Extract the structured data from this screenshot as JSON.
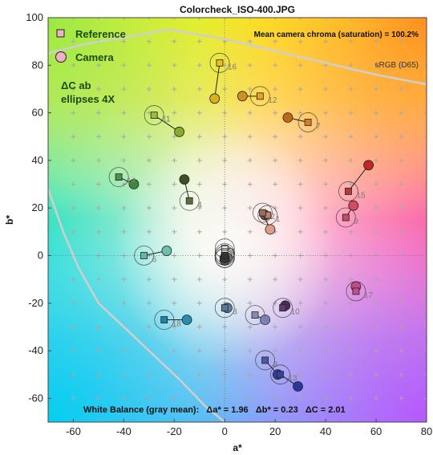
{
  "chart_data": {
    "type": "scatter",
    "title": "Colorcheck_ISO-400.JPG",
    "xlabel": "a*",
    "ylabel": "b*",
    "xlim": [
      -70,
      80
    ],
    "ylim": [
      -70,
      100
    ],
    "xticks": [
      "-60",
      "-40",
      "-20",
      "0",
      "20",
      "40",
      "60",
      "80"
    ],
    "yticks": [
      "100",
      "80",
      "60",
      "40",
      "20",
      "0",
      "-20",
      "-40",
      "-60"
    ],
    "legend": [
      "Reference",
      "Camera"
    ],
    "legend_position": "top-left",
    "annotation_chroma": "Mean camera chroma (saturation) = 100.2%",
    "annotation_space": "sRGB (D65)",
    "annotation_ellipses_line1": "ΔC ab",
    "annotation_ellipses_line2": "ellipses 4X",
    "white_balance": "White Balance (gray mean):   Δa* = 1.96   Δb* = 0.23   ΔC = 2.01",
    "grid": "dotted crosses",
    "patches": [
      {
        "label": "1",
        "ref": [
          17,
          17
        ],
        "cam": [
          16,
          17
        ],
        "ref_color": "#c28070",
        "cam_color": "#7a4a3c"
      },
      {
        "label": "2",
        "ref": [
          15,
          18
        ],
        "cam": [
          18,
          11
        ],
        "ref_color": "#9a6e5c",
        "cam_color": "#e09a86"
      },
      {
        "label": "3",
        "ref": [
          0,
          -22
        ],
        "cam": [
          1,
          -22
        ],
        "ref_color": "#5b7a9a",
        "cam_color": "#5e7fa0"
      },
      {
        "label": "4",
        "ref": [
          -14,
          23
        ],
        "cam": [
          -16,
          32
        ],
        "ref_color": "#5e6e3a",
        "cam_color": "#3e4e26"
      },
      {
        "label": "5",
        "ref": [
          12,
          -25
        ],
        "cam": [
          16,
          -27
        ],
        "ref_color": "#8888bb",
        "cam_color": "#7c84c0"
      },
      {
        "label": "6",
        "ref": [
          -32,
          0
        ],
        "cam": [
          -23,
          2
        ],
        "ref_color": "#60b8a8",
        "cam_color": "#6cc0ae"
      },
      {
        "label": "7",
        "ref": [
          33,
          56
        ],
        "cam": [
          25,
          58
        ],
        "ref_color": "#d87c2a",
        "cam_color": "#c06818"
      },
      {
        "label": "8",
        "ref": [
          16,
          -44
        ],
        "cam": [
          21,
          -50
        ],
        "ref_color": "#4a5aa6",
        "cam_color": "#3040a0"
      },
      {
        "label": "9",
        "ref": [
          48,
          16
        ],
        "cam": [
          51,
          21
        ],
        "ref_color": "#c05060",
        "cam_color": "#d64a60"
      },
      {
        "label": "10",
        "ref": [
          23,
          -22
        ],
        "cam": [
          24,
          -21
        ],
        "ref_color": "#5e3a6a",
        "cam_color": "#4e2a5a"
      },
      {
        "label": "11",
        "ref": [
          -28,
          59
        ],
        "cam": [
          -18,
          52
        ],
        "ref_color": "#9cbc40",
        "cam_color": "#8aaa30"
      },
      {
        "label": "12",
        "ref": [
          14,
          67
        ],
        "cam": [
          7,
          67
        ],
        "ref_color": "#e4a42c",
        "cam_color": "#d09020"
      },
      {
        "label": "13",
        "ref": [
          22,
          -50
        ],
        "cam": [
          29,
          -55
        ],
        "ref_color": "#344498",
        "cam_color": "#28389a"
      },
      {
        "label": "14",
        "ref": [
          -42,
          33
        ],
        "cam": [
          -36,
          30
        ],
        "ref_color": "#48944a",
        "cam_color": "#3a8a3a"
      },
      {
        "label": "15",
        "ref": [
          49,
          27
        ],
        "cam": [
          57,
          38
        ],
        "ref_color": "#b03c3c",
        "cam_color": "#c02828"
      },
      {
        "label": "16",
        "ref": [
          -2,
          81
        ],
        "cam": [
          -4,
          66
        ],
        "ref_color": "#e8c21c",
        "cam_color": "#d8b020"
      },
      {
        "label": "17",
        "ref": [
          52,
          -15
        ],
        "cam": [
          52,
          -13
        ],
        "ref_color": "#c0508e",
        "cam_color": "#c04a8a"
      },
      {
        "label": "18",
        "ref": [
          -24,
          -27
        ],
        "cam": [
          -15,
          -27
        ],
        "ref_color": "#1c84a4",
        "cam_color": "#2a8cb0"
      },
      {
        "label": "",
        "ref": [
          0,
          3
        ],
        "cam": [
          2,
          1
        ],
        "ref_color": "#f4f4f4",
        "cam_color": "#f6f6f6"
      },
      {
        "label": "",
        "ref": [
          0,
          1
        ],
        "cam": [
          1,
          0
        ],
        "ref_color": "#c8c8c8",
        "cam_color": "#cccccc"
      },
      {
        "label": "",
        "ref": [
          0,
          0
        ],
        "cam": [
          1,
          -1
        ],
        "ref_color": "#a0a0a0",
        "cam_color": "#a4a4a4"
      },
      {
        "label": "",
        "ref": [
          0,
          -1
        ],
        "cam": [
          1,
          -1
        ],
        "ref_color": "#7a7a7a",
        "cam_color": "#7c7c7c"
      },
      {
        "label": "",
        "ref": [
          0,
          -1
        ],
        "cam": [
          0,
          -2
        ],
        "ref_color": "#555555",
        "cam_color": "#585858"
      },
      {
        "label": "",
        "ref": [
          0,
          0
        ],
        "cam": [
          0,
          -1
        ],
        "ref_color": "#333333",
        "cam_color": "#363636"
      }
    ]
  }
}
